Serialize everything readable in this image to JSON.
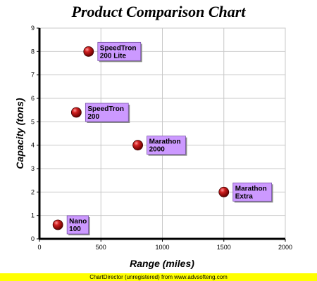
{
  "chart_data": {
    "type": "scatter",
    "title": "Product Comparison Chart",
    "xlabel": "Range (miles)",
    "ylabel": "Capacity (tons)",
    "xlim": [
      0,
      2000
    ],
    "ylim": [
      0,
      9
    ],
    "xticks": [
      0,
      500,
      1000,
      1500,
      2000
    ],
    "yticks": [
      0,
      1,
      2,
      3,
      4,
      5,
      6,
      7,
      8,
      9
    ],
    "grid": true,
    "points": [
      {
        "label_line1": "Nano",
        "label_line2": "100",
        "x": 150,
        "y": 0.6
      },
      {
        "label_line1": "SpeedTron",
        "label_line2": "200",
        "x": 300,
        "y": 5.4
      },
      {
        "label_line1": "SpeedTron",
        "label_line2": "200 Lite",
        "x": 400,
        "y": 8
      },
      {
        "label_line1": "Marathon",
        "label_line2": "2000",
        "x": 800,
        "y": 4
      },
      {
        "label_line1": "Marathon",
        "label_line2": "Extra",
        "x": 1500,
        "y": 2
      }
    ],
    "colors": {
      "marker": "#a01818",
      "label_fill": "#cc99ff",
      "grid": "#c8c8c8"
    }
  },
  "footer": "ChartDirector (unregistered) from www.advsofteng.com"
}
